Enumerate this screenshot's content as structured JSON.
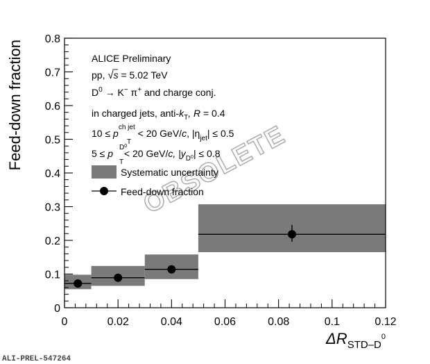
{
  "chart_data": {
    "type": "scatter",
    "title": "",
    "xlabel": "ΔR",
    "xlabel_sub": "STD–D",
    "xlabel_sub_sup": "0",
    "ylabel": "Feed-down fraction",
    "xlim": [
      0,
      0.12
    ],
    "ylim": [
      0,
      0.8
    ],
    "x_ticks": [
      "0",
      "0.02",
      "0.04",
      "0.06",
      "0.08",
      "0.1",
      "0.12"
    ],
    "y_ticks": [
      "0",
      "0.1",
      "0.2",
      "0.3",
      "0.4",
      "0.5",
      "0.6",
      "0.7",
      "0.8"
    ],
    "grid": false,
    "series": [
      {
        "name": "Feed-down fraction",
        "points": [
          {
            "x": 0.005,
            "x_low": 0.0,
            "x_high": 0.01,
            "y": 0.072,
            "stat_low": 0.067,
            "stat_high": 0.077,
            "sys_low": 0.055,
            "sys_high": 0.098
          },
          {
            "x": 0.02,
            "x_low": 0.01,
            "x_high": 0.03,
            "y": 0.089,
            "stat_low": 0.084,
            "stat_high": 0.094,
            "sys_low": 0.065,
            "sys_high": 0.124
          },
          {
            "x": 0.04,
            "x_low": 0.03,
            "x_high": 0.05,
            "y": 0.114,
            "stat_low": 0.108,
            "stat_high": 0.12,
            "sys_low": 0.085,
            "sys_high": 0.158
          },
          {
            "x": 0.085,
            "x_low": 0.05,
            "x_high": 0.12,
            "y": 0.218,
            "stat_low": 0.196,
            "stat_high": 0.246,
            "sys_low": 0.165,
            "sys_high": 0.307
          }
        ]
      }
    ],
    "colors": {
      "marker": "#000000",
      "systematic": "#7a7a7a",
      "watermark": "#bdbdbd"
    }
  },
  "annotations": {
    "line1": "ALICE Preliminary",
    "line2_pre": "pp, ",
    "line2_s": "s",
    "line2_post": " = 5.02 TeV",
    "line3_D": "D",
    "line3_D_sup": "0",
    "line3_arrow": " → K",
    "line3_minus": "−",
    "line3_pi": " π",
    "line3_plus": "+",
    "line3_post": " and charge conj.",
    "line4_pre": "in charged jets, anti-",
    "line4_k": "k",
    "line4_T": "T",
    "line4_R": ", R",
    "line4_post": " = 0.4",
    "line5_pre": "10 ≤ ",
    "line5_p": "p",
    "line5_T": "T",
    "line5_sup": "ch jet",
    "line5_mid": " < 20 GeV/",
    "line5_c": "c",
    "line5_eta": ", |η",
    "line5_jet": "jet",
    "line5_post": "| ≤ 0.5",
    "line6_pre": "5 ≤ ",
    "line6_p": "p",
    "line6_T": "T",
    "line6_sup": "D",
    "line6_sup2": "0",
    "line6_mid": " < 20 GeV/",
    "line6_c": "c",
    "line6_y": ", |y",
    "line6_sub": "D",
    "line6_sub2": "0",
    "line6_post": "| ≤ 0.8",
    "legend_sys": "Systematic uncertainty",
    "legend_data": "Feed-down fraction"
  },
  "watermark": "OBSOLETE",
  "figure_id": "ALI-PREL-547264"
}
